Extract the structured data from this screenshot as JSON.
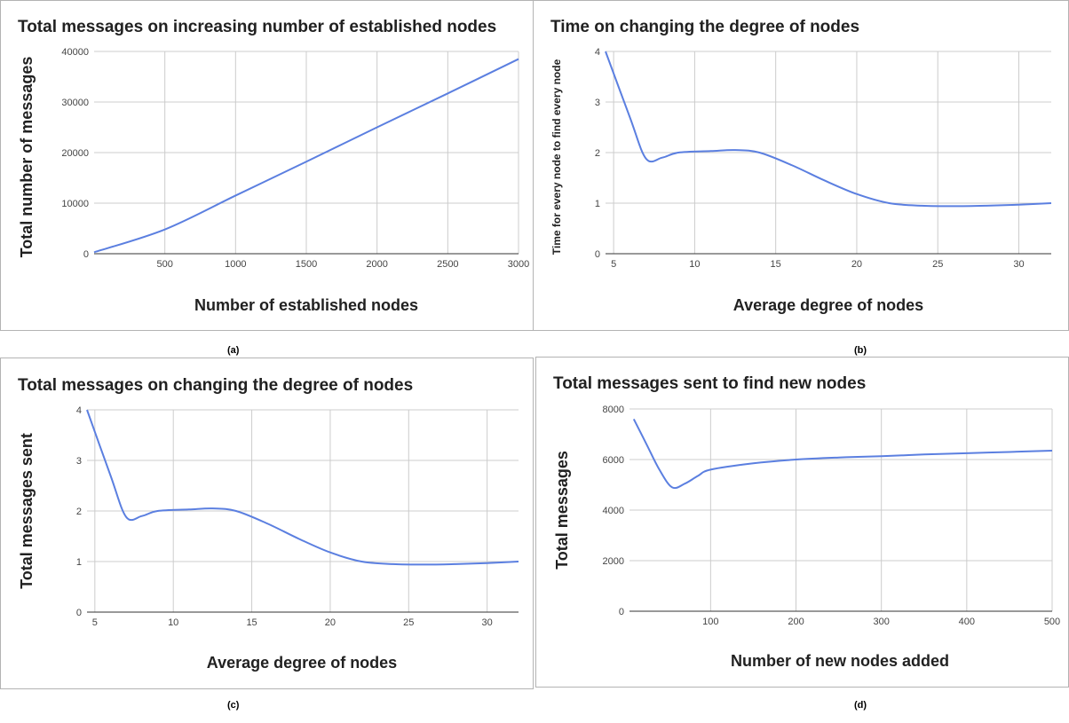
{
  "theme": {
    "line_color": "#5b7fe0",
    "grid_color": "#cccccc"
  },
  "captions": [
    "(a)",
    "(b)",
    "(c)",
    "(d)"
  ],
  "chart_data": [
    {
      "type": "line",
      "title": "Total messages on increasing number of established nodes",
      "xlabel": "Number of established nodes",
      "ylabel": "Total number of messages",
      "xlim": [
        0,
        3000
      ],
      "ylim": [
        0,
        40000
      ],
      "xticks": [
        500,
        1000,
        1500,
        2000,
        2500,
        3000
      ],
      "yticks": [
        0,
        10000,
        20000,
        30000,
        40000
      ],
      "grid": true,
      "x": [
        0,
        500,
        1000,
        1500,
        2000,
        2500,
        3000
      ],
      "y": [
        300,
        4800,
        11500,
        18200,
        25000,
        31700,
        38500
      ]
    },
    {
      "type": "line",
      "title": "Time on changing the degree of nodes",
      "xlabel": "Average degree of nodes",
      "ylabel": "Time for every node to find every node",
      "xlim": [
        4.5,
        32
      ],
      "ylim": [
        0,
        4
      ],
      "xticks": [
        5,
        10,
        15,
        20,
        25,
        30
      ],
      "yticks": [
        0,
        1,
        2,
        3,
        4
      ],
      "grid": true,
      "x": [
        4.5,
        6,
        7,
        8,
        9,
        11,
        12.5,
        14,
        16,
        18,
        20,
        22,
        24,
        26,
        28,
        30,
        32
      ],
      "y": [
        4.0,
        2.7,
        1.88,
        1.9,
        2.0,
        2.03,
        2.05,
        2.0,
        1.75,
        1.45,
        1.18,
        1.0,
        0.95,
        0.94,
        0.95,
        0.97,
        1.0
      ]
    },
    {
      "type": "line",
      "title": "Total messages on changing the degree of nodes",
      "xlabel": "Average degree of nodes",
      "ylabel": "Total messages sent",
      "xlim": [
        4.5,
        32
      ],
      "ylim": [
        0,
        4
      ],
      "xticks": [
        5,
        10,
        15,
        20,
        25,
        30
      ],
      "yticks": [
        0,
        1,
        2,
        3,
        4
      ],
      "grid": true,
      "x": [
        4.5,
        6,
        7,
        8,
        9,
        11,
        12.5,
        14,
        16,
        18,
        20,
        22,
        24,
        26,
        28,
        30,
        32
      ],
      "y": [
        4.0,
        2.7,
        1.88,
        1.9,
        2.0,
        2.03,
        2.05,
        2.0,
        1.75,
        1.45,
        1.18,
        1.0,
        0.95,
        0.94,
        0.95,
        0.97,
        1.0
      ]
    },
    {
      "type": "line",
      "title": "Total messages sent to find new nodes",
      "xlabel": "Number of new nodes added",
      "ylabel": "Total messages",
      "xlim": [
        5,
        500
      ],
      "ylim": [
        0,
        8000
      ],
      "xticks": [
        100,
        200,
        300,
        400,
        500
      ],
      "yticks": [
        0,
        2000,
        4000,
        6000,
        8000
      ],
      "grid": true,
      "x": [
        10,
        25,
        40,
        55,
        70,
        85,
        100,
        150,
        200,
        250,
        300,
        350,
        400,
        450,
        500
      ],
      "y": [
        7600,
        6600,
        5600,
        4900,
        5050,
        5350,
        5600,
        5850,
        6000,
        6080,
        6130,
        6200,
        6250,
        6300,
        6350
      ]
    }
  ]
}
